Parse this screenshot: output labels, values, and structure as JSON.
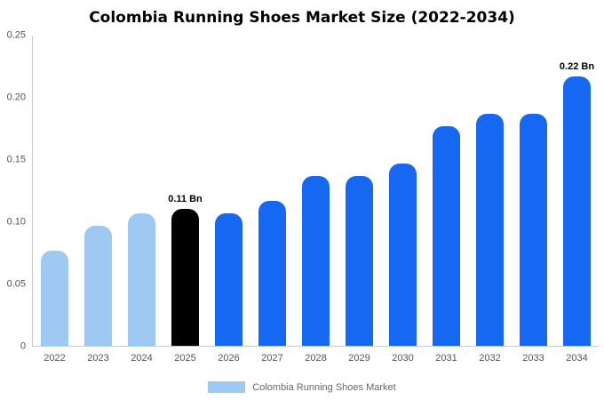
{
  "title": "Colombia Running Shoes Market Size (2022-2034)",
  "colors": {
    "light_blue": "#9ec9f3",
    "highlight_black": "#000000",
    "blue": "#1668f2",
    "axis_line": "#c9c9c9",
    "tick_text": "#555555"
  },
  "legend": {
    "label": "Colombia Running Shoes Market",
    "swatch_color": "#9ec9f3"
  },
  "chart_data": {
    "type": "bar",
    "title": "Colombia Running Shoes Market Size (2022-2034)",
    "categories": [
      "2022",
      "2023",
      "2024",
      "2025",
      "2026",
      "2027",
      "2028",
      "2029",
      "2030",
      "2031",
      "2032",
      "2033",
      "2034"
    ],
    "values": [
      0.077,
      0.097,
      0.107,
      0.11,
      0.107,
      0.117,
      0.137,
      0.137,
      0.147,
      0.177,
      0.187,
      0.187,
      0.217
    ],
    "unit": "Bn",
    "xlabel": "",
    "ylabel": "",
    "ylim": [
      0,
      0.25
    ],
    "yticks": [
      {
        "value": 0,
        "label": "0"
      },
      {
        "value": 0.05,
        "label": "0.05"
      },
      {
        "value": 0.1,
        "label": "0.10"
      },
      {
        "value": 0.15,
        "label": "0.15"
      },
      {
        "value": 0.2,
        "label": "0.20"
      },
      {
        "value": 0.25,
        "label": "0.25"
      }
    ],
    "bar_colors": [
      "#9ec9f3",
      "#9ec9f3",
      "#9ec9f3",
      "#000000",
      "#1668f2",
      "#1668f2",
      "#1668f2",
      "#1668f2",
      "#1668f2",
      "#1668f2",
      "#1668f2",
      "#1668f2",
      "#1668f2"
    ],
    "annotations": [
      {
        "category": "2025",
        "text": "0.11 Bn"
      },
      {
        "category": "2034",
        "text": "0.22 Bn"
      }
    ],
    "legend_entries": [
      "Colombia Running Shoes Market"
    ],
    "legend_position": "bottom",
    "grid": false
  }
}
